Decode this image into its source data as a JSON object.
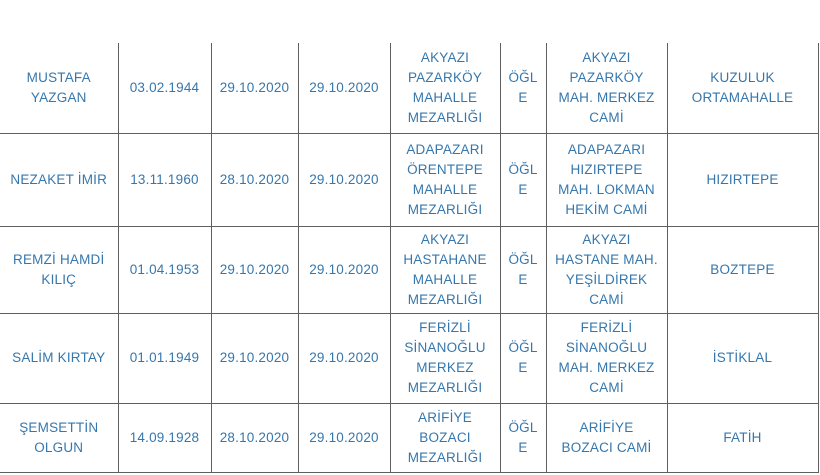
{
  "colors": {
    "text_blue": "#3577ad",
    "grid_line": "#5f5f5f",
    "background": "#ffffff"
  },
  "table": {
    "rows": [
      [
        "MUSTAFA YAZGAN",
        "03.02.1944",
        "29.10.2020",
        "29.10.2020",
        "AKYAZI PAZARKÖY MAHALLE MEZARLIĞI",
        "ÖĞLE",
        "AKYAZI PAZARKÖY MAH. MERKEZ CAMİ",
        "KUZULUK ORTAMAHALLE"
      ],
      [
        "NEZAKET İMİR",
        "13.11.1960",
        "28.10.2020",
        "29.10.2020",
        "ADAPAZARI ÖRENTEPE MAHALLE MEZARLIĞI",
        "ÖĞLE",
        "ADAPAZARI HIZIRTEPE MAH. LOKMAN HEKİM CAMİ",
        "HIZIRTEPE"
      ],
      [
        "REMZİ HAMDİ KILIÇ",
        "01.04.1953",
        "29.10.2020",
        "29.10.2020",
        "AKYAZI HASTAHANE MAHALLE MEZARLIĞI",
        "ÖĞLE",
        "AKYAZI HASTANE MAH. YEŞİLDİREK CAMİ",
        "BOZTEPE"
      ],
      [
        "SALİM KIRTAY",
        "01.01.1949",
        "29.10.2020",
        "29.10.2020",
        "FERİZLİ SİNANOĞLU MERKEZ MEZARLIĞI",
        "ÖĞLE",
        "FERİZLİ SİNANOĞLU MAH. MERKEZ CAMİ",
        "İSTİKLAL"
      ],
      [
        "ŞEMSETTİN OLGUN",
        "14.09.1928",
        "28.10.2020",
        "29.10.2020",
        "ARİFİYE BOZACI MEZARLIĞI",
        "ÖĞLE",
        "ARİFİYE BOZACI CAMİ",
        "FATİH"
      ]
    ]
  }
}
